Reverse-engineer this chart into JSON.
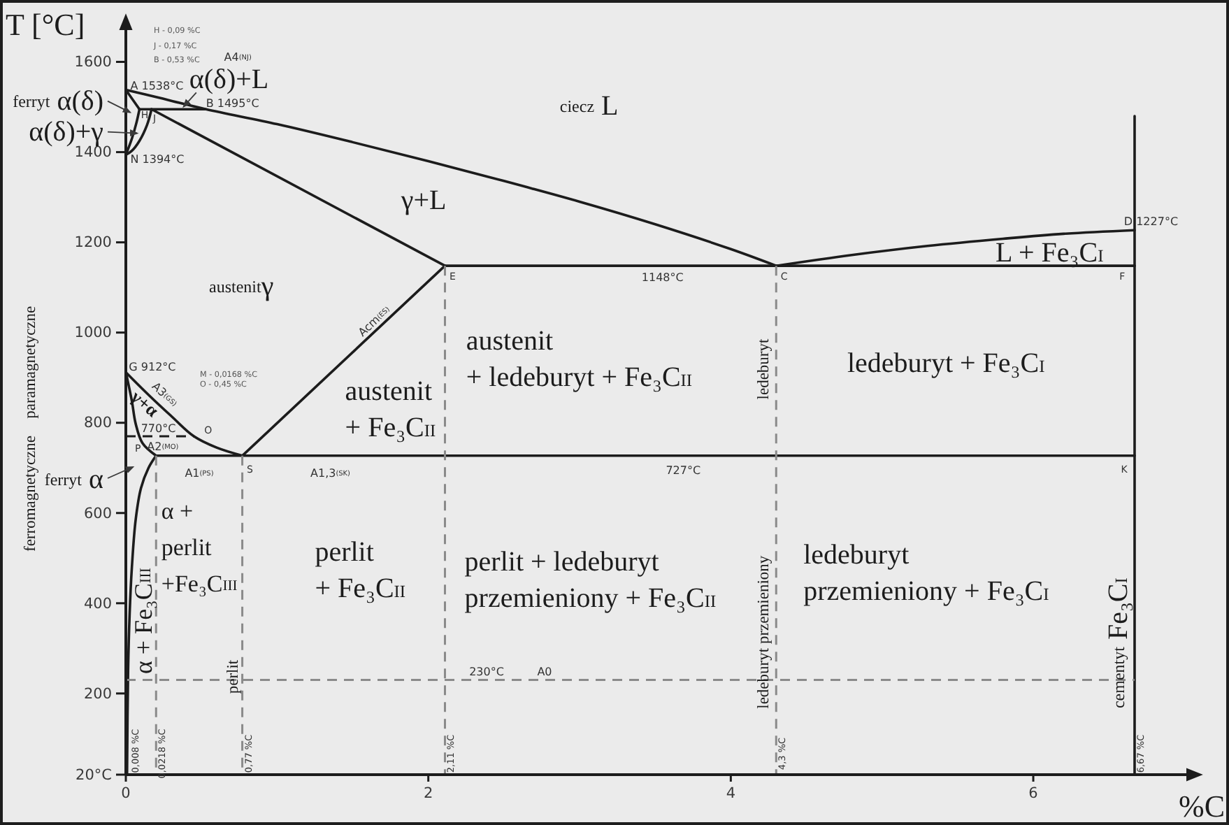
{
  "chart_data": {
    "type": "line",
    "xlabel": "%C",
    "ylabel": "T [°C]",
    "xlim": [
      0,
      7.1
    ],
    "ylim": [
      20,
      1700
    ],
    "xticks": [
      0,
      2,
      4,
      6
    ],
    "yticks": [
      {
        "value": 20,
        "label": "20°C"
      },
      200,
      400,
      600,
      800,
      1000,
      1200,
      1400,
      1600
    ],
    "series": [
      {
        "color": "#1c1c1c",
        "x": [
          0,
          0.2,
          0.53,
          1.0,
          1.5,
          2.0,
          2.5,
          3.0,
          3.5,
          4.0,
          4.3
        ],
        "values": [
          1538,
          1522,
          1495,
          1462,
          1422,
          1380,
          1336,
          1290,
          1240,
          1185,
          1148
        ]
      },
      {
        "color": "#1c1c1c",
        "x": [
          0,
          0.09
        ],
        "values": [
          1538,
          1495
        ]
      },
      {
        "color": "#1c1c1c",
        "x": [
          0.09,
          0.53
        ],
        "values": [
          1495,
          1495
        ]
      },
      {
        "color": "#1c1c1c",
        "x": [
          0.09,
          0.07,
          0.04,
          0
        ],
        "values": [
          1495,
          1465,
          1430,
          1394
        ]
      },
      {
        "color": "#1c1c1c",
        "x": [
          0.17,
          0.14,
          0.09,
          0.04,
          0
        ],
        "values": [
          1495,
          1460,
          1425,
          1403,
          1394
        ]
      },
      {
        "color": "#1c1c1c",
        "x": [
          0.17,
          2.11
        ],
        "values": [
          1495,
          1148
        ]
      },
      {
        "color": "#1c1c1c",
        "x": [
          2.11,
          6.67
        ],
        "values": [
          1148,
          1148
        ]
      },
      {
        "color": "#1c1c1c",
        "x": [
          4.3,
          4.8,
          5.3,
          5.8,
          6.2,
          6.67
        ],
        "values": [
          1148,
          1172,
          1192,
          1208,
          1219,
          1227
        ]
      },
      {
        "color": "#1c1c1c",
        "x": [
          6.67,
          6.67
        ],
        "values": [
          1480,
          20
        ]
      },
      {
        "color": "#1c1c1c",
        "x": [
          2.11,
          0.77
        ],
        "values": [
          1148,
          727
        ]
      },
      {
        "color": "#1c1c1c",
        "x": [
          0,
          0.15,
          0.3,
          0.45,
          0.6,
          0.77
        ],
        "values": [
          912,
          862,
          815,
          770,
          745,
          727
        ]
      },
      {
        "color": "#1c1c1c",
        "x": [
          0,
          0.04,
          0.065,
          0.11,
          0.2
        ],
        "values": [
          912,
          848,
          798,
          755,
          727
        ]
      },
      {
        "color": "#1c1c1c",
        "x": [
          0.2,
          0.15,
          0.1,
          0.065,
          0.04,
          0.025,
          0.015,
          0.008
        ],
        "values": [
          727,
          700,
          655,
          585,
          480,
          375,
          250,
          20
        ]
      },
      {
        "color": "#1c1c1c",
        "x": [
          0.2,
          6.67
        ],
        "values": [
          727,
          727
        ]
      },
      {
        "color": "#8a8a8a",
        "line_style": "dashed",
        "x": [
          0.2,
          0.2
        ],
        "values": [
          727,
          20
        ]
      },
      {
        "color": "#8a8a8a",
        "line_style": "dashed",
        "x": [
          0.77,
          0.77
        ],
        "values": [
          727,
          20
        ]
      },
      {
        "color": "#8a8a8a",
        "line_style": "dashed",
        "x": [
          2.11,
          2.11
        ],
        "values": [
          1148,
          20
        ]
      },
      {
        "color": "#8a8a8a",
        "line_style": "dashed",
        "x": [
          4.3,
          4.3
        ],
        "values": [
          1148,
          20
        ]
      },
      {
        "color": "#8a8a8a",
        "line_style": "dashed",
        "x": [
          0,
          6.67
        ],
        "values": [
          230,
          230
        ]
      },
      {
        "color": "#1c1c1c",
        "line_style": "dashed",
        "x": [
          0,
          0.45
        ],
        "values": [
          770,
          770
        ]
      }
    ],
    "annotations": [
      "H - 0,09 %C",
      "J - 0,17 %C",
      "B - 0,53 %C",
      "A4$_{(NJ)}$",
      "α(δ)+L",
      "ferryt α(δ)",
      "α(δ)+γ",
      {
        "text": "A 1538°C",
        "x": 0.03,
        "y": 1548
      },
      {
        "text": "N 1394°C",
        "x": 0.03,
        "y": 1385
      },
      {
        "text": "B 1495°C",
        "x": 0.53,
        "y": 1509
      },
      {
        "text": "H",
        "x": 0.1,
        "y": 1482
      },
      {
        "text": "J",
        "x": 0.18,
        "y": 1474
      },
      "ciecz L",
      "γ+L",
      "austenitγ",
      {
        "text": "E",
        "x": 2.14,
        "y": 1124
      },
      "1148°C",
      {
        "text": "C",
        "x": 4.33,
        "y": 1124
      },
      {
        "text": "F",
        "x": 6.67,
        "y": 1148
      },
      {
        "text": "D 1227°C",
        "x": 6.67,
        "y": 1227
      },
      "L + Fe₃C$_{I}$",
      "Acm$_{(ES)}$",
      "austenit\n+ Fe₃C$_{II}$",
      "austenit\n+ ledeburyt + Fe₃C$_{II}$",
      "ledeburyt + Fe₃C$_{I}$",
      "ledeburyt",
      {
        "text": "G 912°C",
        "x": 0.02,
        "y": 925
      },
      "M - 0,0168 %C",
      "O - 0,45 %C",
      {
        "text": "γ+α",
        "x": 0.13,
        "y": 844
      },
      "A3$_{(GS)}$",
      {
        "text": "770°C",
        "x": 0.1,
        "y": 789
      },
      {
        "text": "A2$_{(MO)}$",
        "x": 0.14,
        "y": 748
      },
      {
        "text": "O",
        "x": 0.45,
        "y": 770
      },
      {
        "text": "P",
        "x": 0.2,
        "y": 727
      },
      {
        "text": "S",
        "x": 0.8,
        "y": 696
      },
      {
        "text": "K",
        "x": 6.67,
        "y": 727
      },
      "A1$_{(PS)}$",
      "A1,3$_{(SK)}$",
      "727°C",
      "paramagnetyczne",
      "ferromagnetyczne",
      "ferryt α",
      "α +\nperlit\n+Fe₃C$_{III}$",
      "perlit\n+ Fe₃C$_{II}$",
      "perlit + ledeburyt\nprzemieniony + Fe₃C$_{II}$",
      "ledeburyt\nprzemieniony + Fe₃C$_{I}$",
      "cementyt Fe₃C$_{I}$",
      "ledeburyt przemieniony",
      "perlit",
      "α + Fe₃C$_{III}$",
      {
        "text": "0,008 %C",
        "x": 0.008,
        "y": 20
      },
      {
        "text": "0,0218 %C",
        "x": 0.2,
        "y": 20
      },
      {
        "text": "0,77 %C",
        "x": 0.77,
        "y": 20
      },
      {
        "text": "2,11 %C",
        "x": 2.11,
        "y": 20
      },
      {
        "text": "4,3 %C",
        "x": 4.3,
        "y": 20
      },
      {
        "text": "6,67 %C",
        "x": 6.67,
        "y": 20
      },
      "230°C",
      "A0"
    ]
  }
}
